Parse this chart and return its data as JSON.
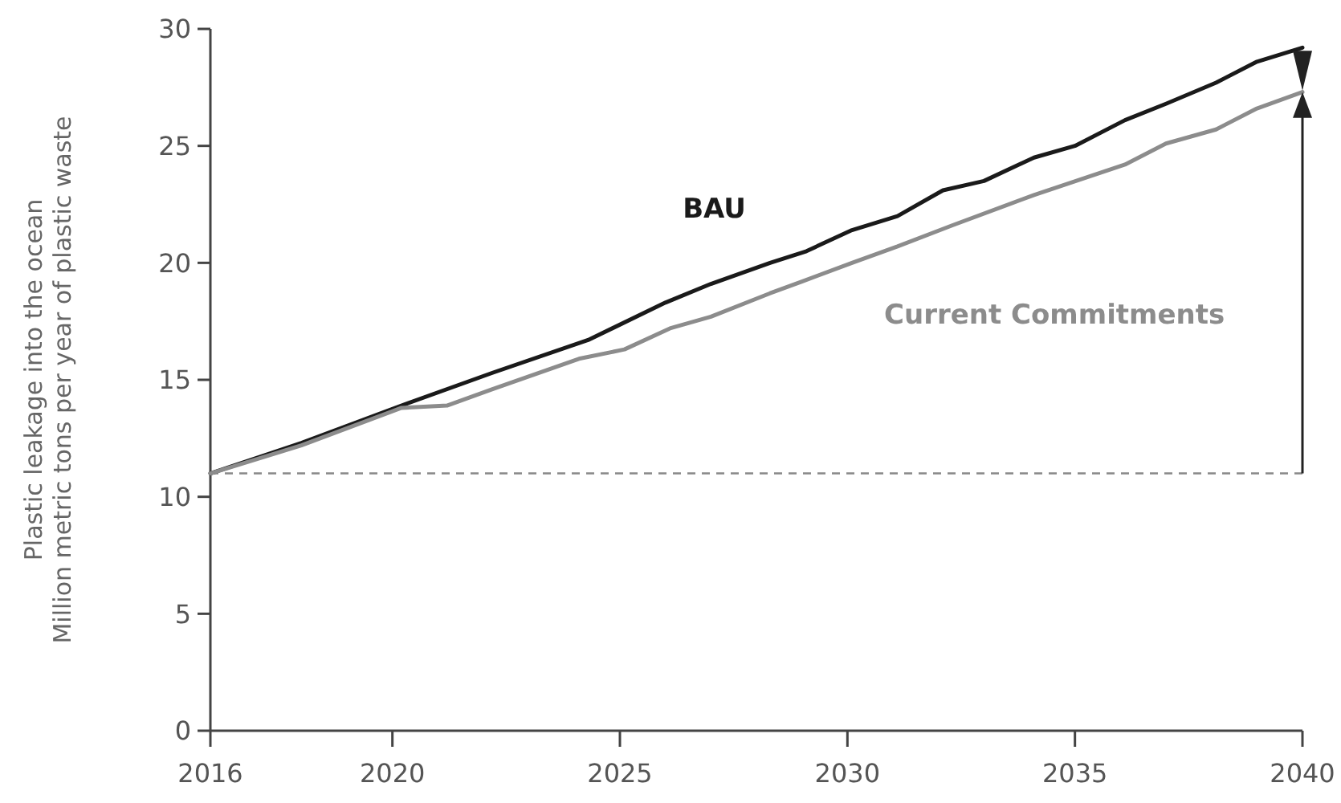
{
  "chart_data": {
    "type": "line",
    "ylabel": "Plastic leakage into the ocean\nMillion metric tons per year of plastic waste",
    "xlim": [
      2016,
      2040
    ],
    "xticks": [
      2016,
      2020,
      2025,
      2030,
      2035,
      2040
    ],
    "ylim": [
      0,
      30
    ],
    "yticks": [
      0,
      5,
      10,
      15,
      20,
      25,
      30
    ],
    "grid": false,
    "marker": "none",
    "line_style": "solid",
    "ref_lines": [
      {
        "axis": "y",
        "value": 11,
        "color": "#888888",
        "line_style": "dashed"
      }
    ],
    "series": [
      {
        "name": "BAU",
        "color": "#1a1a1a",
        "x": [
          2016,
          2018,
          2020.2,
          2022.2,
          2024.3,
          2026.0,
          2027.0,
          2028.3,
          2029.1,
          2030.1,
          2031.1,
          2032.1,
          2033.0,
          2034.1,
          2035.0,
          2036.1,
          2037.0,
          2038.1,
          2039.0,
          2040
        ],
        "values": [
          11.0,
          12.3,
          13.9,
          15.3,
          16.7,
          18.3,
          19.1,
          20.0,
          20.5,
          21.4,
          22.0,
          23.1,
          23.5,
          24.5,
          25.0,
          26.1,
          26.8,
          27.7,
          28.6,
          29.2
        ]
      },
      {
        "name": "Current Commitments",
        "color": "#8c8c8c",
        "x": [
          2016,
          2018,
          2020.2,
          2021.2,
          2022.2,
          2024.1,
          2025.1,
          2026.1,
          2027.0,
          2028.3,
          2029.0,
          2030.1,
          2031.1,
          2032.3,
          2034.1,
          2036.1,
          2037.0,
          2038.1,
          2039.0,
          2040
        ],
        "values": [
          11.0,
          12.2,
          13.8,
          13.9,
          14.6,
          15.9,
          16.3,
          17.2,
          17.7,
          18.7,
          19.2,
          20.0,
          20.7,
          21.6,
          22.9,
          24.2,
          25.1,
          25.7,
          26.6,
          27.3
        ]
      }
    ]
  }
}
